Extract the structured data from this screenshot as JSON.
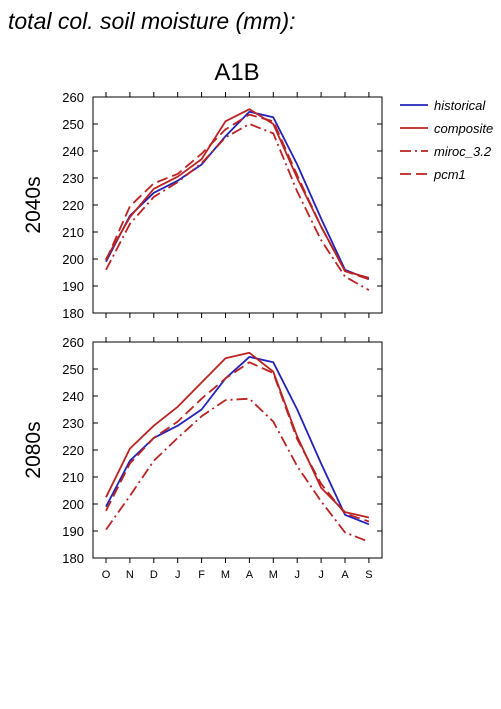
{
  "page_title": "total col. soil moisture (mm):",
  "scenario_label": "A1B",
  "legend": [
    {
      "name": "historical",
      "color": "#2222bb",
      "dash": "solid"
    },
    {
      "name": "composite",
      "color": "#bb2222",
      "dash": "solid"
    },
    {
      "name": "miroc_3.2",
      "color": "#bb2222",
      "dash": "dashdot"
    },
    {
      "name": "pcm1",
      "color": "#bb2222",
      "dash": "dashed"
    }
  ],
  "chart_data": [
    {
      "type": "line",
      "row_label": "2040s",
      "categories": [
        "O",
        "N",
        "D",
        "J",
        "F",
        "M",
        "A",
        "M",
        "J",
        "J",
        "A",
        "S"
      ],
      "ylim": [
        180,
        260
      ],
      "yticks": [
        180,
        190,
        200,
        210,
        220,
        230,
        240,
        250,
        260
      ],
      "series": [
        {
          "name": "historical",
          "values": [
            199,
            216,
            224.5,
            229,
            235,
            245.5,
            254.5,
            252.5,
            235,
            215,
            196,
            192.5
          ]
        },
        {
          "name": "composite",
          "values": [
            200,
            215.5,
            226,
            230.5,
            237,
            251,
            255.5,
            250,
            230,
            212,
            195.5,
            193
          ]
        },
        {
          "name": "miroc_3.2",
          "values": [
            196,
            213,
            223,
            228.5,
            235.5,
            245,
            250,
            246.5,
            225,
            207,
            193.5,
            188.5
          ]
        },
        {
          "name": "pcm1",
          "values": [
            199.5,
            219.5,
            228,
            231.5,
            239,
            248,
            253.5,
            251,
            231,
            212,
            195.5,
            192.5
          ]
        }
      ]
    },
    {
      "type": "line",
      "row_label": "2080s",
      "categories": [
        "O",
        "N",
        "D",
        "J",
        "F",
        "M",
        "A",
        "M",
        "J",
        "J",
        "A",
        "S"
      ],
      "ylim": [
        180,
        260
      ],
      "yticks": [
        180,
        190,
        200,
        210,
        220,
        230,
        240,
        250,
        260
      ],
      "series": [
        {
          "name": "historical",
          "values": [
            199,
            216,
            224.5,
            229,
            235,
            246.5,
            254.5,
            252.5,
            235,
            215,
            196,
            192.5
          ]
        },
        {
          "name": "composite",
          "values": [
            202.5,
            220.5,
            229,
            236,
            245,
            254,
            256,
            249,
            225,
            206,
            197,
            195
          ]
        },
        {
          "name": "miroc_3.2",
          "values": [
            190.5,
            203,
            216,
            224.5,
            232.5,
            238.5,
            239,
            230.5,
            214,
            201,
            189.5,
            186
          ]
        },
        {
          "name": "pcm1",
          "values": [
            197.5,
            215,
            224.5,
            230.5,
            239,
            246.5,
            252.5,
            248.5,
            224,
            207.5,
            196.5,
            193.5
          ]
        }
      ]
    }
  ]
}
